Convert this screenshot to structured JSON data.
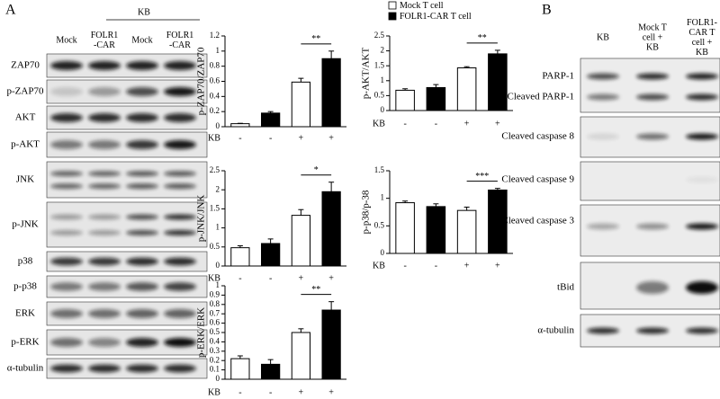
{
  "panel_a": {
    "letter": "A",
    "group_label": "KB",
    "lanes": [
      [
        "Mock"
      ],
      [
        "FOLR1",
        "-CAR"
      ],
      [
        "Mock"
      ],
      [
        "FOLR1",
        "-CAR"
      ]
    ],
    "rows": [
      "ZAP70",
      "p-ZAP70",
      "AKT",
      "p-AKT",
      "JNK",
      "p-JNK",
      "p38",
      "p-p38",
      "ERK",
      "p-ERK",
      "α-tubulin"
    ]
  },
  "panel_b": {
    "letter": "B",
    "lanes": [
      [
        "KB"
      ],
      [
        "Mock T",
        "cell +",
        "KB"
      ],
      [
        "FOLR1-",
        "CAR T",
        "cell +",
        "KB"
      ]
    ],
    "rows": [
      "PARP-1",
      "Cleaved PARP-1",
      "Cleaved caspase 8",
      "Cleaved caspase 9",
      "Cleaved caspase 3",
      "tBid",
      "α-tubulin"
    ]
  },
  "legend": [
    {
      "name": "Mock T cell",
      "color": "#ffffff"
    },
    {
      "name": "FOLR1-CAR T cell",
      "color": "#000000"
    }
  ],
  "chart_data": [
    {
      "type": "bar",
      "ylabel": "p-ZAP70/ZAP70",
      "xlabel": "KB",
      "categories": [
        "-",
        "-",
        "+",
        "+"
      ],
      "values": [
        0.04,
        0.18,
        0.59,
        0.9
      ],
      "errors": [
        0.005,
        0.02,
        0.05,
        0.1
      ],
      "colors": [
        "#ffffff",
        "#000000",
        "#ffffff",
        "#000000"
      ],
      "ylim": [
        0,
        1.2
      ],
      "yticks": [
        0,
        0.2,
        0.4,
        0.6,
        0.8,
        1,
        1.2
      ],
      "significance": "**"
    },
    {
      "type": "bar",
      "ylabel": "p-AKT/AKT",
      "xlabel": "KB",
      "categories": [
        "-",
        "-",
        "+",
        "+"
      ],
      "values": [
        0.68,
        0.77,
        1.43,
        1.9
      ],
      "errors": [
        0.05,
        0.1,
        0.04,
        0.12
      ],
      "colors": [
        "#ffffff",
        "#000000",
        "#ffffff",
        "#000000"
      ],
      "ylim": [
        0,
        2.5
      ],
      "yticks": [
        0,
        0.5,
        1,
        1.5,
        2,
        2.5
      ],
      "significance": "**"
    },
    {
      "type": "bar",
      "ylabel": "p-JNK/JNK",
      "xlabel": "KB",
      "categories": [
        "-",
        "-",
        "+",
        "+"
      ],
      "values": [
        0.48,
        0.59,
        1.33,
        1.95
      ],
      "errors": [
        0.05,
        0.12,
        0.15,
        0.25
      ],
      "colors": [
        "#ffffff",
        "#000000",
        "#ffffff",
        "#000000"
      ],
      "ylim": [
        0,
        2.5
      ],
      "yticks": [
        0,
        0.5,
        1,
        1.5,
        2,
        2.5
      ],
      "significance": "*"
    },
    {
      "type": "bar",
      "ylabel": "p-p38/p-38",
      "xlabel": "KB",
      "categories": [
        "-",
        "-",
        "+",
        "+"
      ],
      "values": [
        0.92,
        0.85,
        0.78,
        1.15
      ],
      "errors": [
        0.03,
        0.05,
        0.06,
        0.03
      ],
      "colors": [
        "#ffffff",
        "#000000",
        "#ffffff",
        "#000000"
      ],
      "ylim": [
        0,
        1.5
      ],
      "yticks": [
        0,
        0.5,
        1,
        1.5
      ],
      "significance": "***"
    },
    {
      "type": "bar",
      "ylabel": "p-ERK/ERK",
      "xlabel": "KB",
      "categories": [
        "-",
        "-",
        "+",
        "+"
      ],
      "values": [
        0.22,
        0.16,
        0.5,
        0.74
      ],
      "errors": [
        0.03,
        0.05,
        0.04,
        0.09
      ],
      "colors": [
        "#ffffff",
        "#000000",
        "#ffffff",
        "#000000"
      ],
      "ylim": [
        0,
        1
      ],
      "yticks": [
        0,
        0.1,
        0.2,
        0.3,
        0.4,
        0.5,
        0.6,
        0.7,
        0.8,
        0.9,
        1
      ],
      "significance": "**"
    }
  ]
}
